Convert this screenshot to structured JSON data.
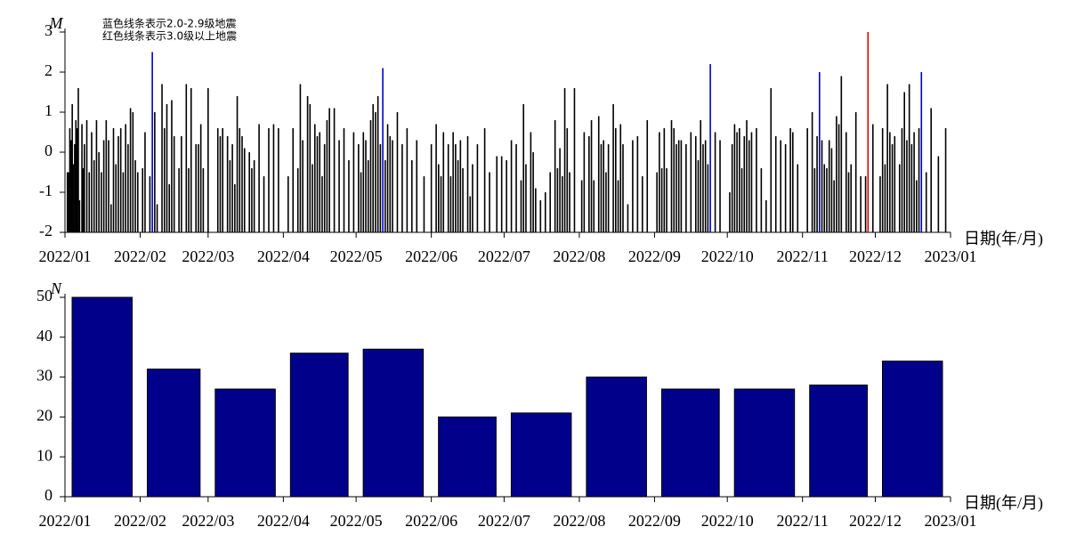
{
  "chart_data": [
    {
      "type": "stem",
      "y_label": "M",
      "x_label": "日期(年/月)",
      "xlim": [
        0,
        365
      ],
      "xticks": [
        {
          "value": 0,
          "label": "2022/01"
        },
        {
          "value": 31,
          "label": "2022/02"
        },
        {
          "value": 59,
          "label": "2022/03"
        },
        {
          "value": 90,
          "label": "2022/04"
        },
        {
          "value": 120,
          "label": "2022/05"
        },
        {
          "value": 151,
          "label": "2022/06"
        },
        {
          "value": 181,
          "label": "2022/07"
        },
        {
          "value": 212,
          "label": "2022/08"
        },
        {
          "value": 243,
          "label": "2022/09"
        },
        {
          "value": 273,
          "label": "2022/10"
        },
        {
          "value": 304,
          "label": "2022/11"
        },
        {
          "value": 334,
          "label": "2022/12"
        },
        {
          "value": 365,
          "label": "2023/01"
        }
      ],
      "ylim": [
        -2,
        3
      ],
      "yticks": [
        -2,
        -1,
        0,
        1,
        2,
        3
      ],
      "series": [
        {
          "color": "#000000",
          "x": [
            1,
            1.5,
            2,
            2.5,
            3,
            3.5,
            4,
            4.5,
            5,
            5.5,
            6,
            7,
            7.5,
            8,
            9,
            10,
            11,
            12,
            13,
            14,
            15,
            16,
            17,
            18,
            19,
            20,
            21,
            22,
            23,
            24,
            25,
            26,
            27,
            28,
            29,
            30,
            32,
            33,
            35,
            37,
            38,
            40,
            41,
            42,
            43,
            44,
            45,
            47,
            48,
            50,
            51,
            52,
            54,
            55,
            56,
            57,
            59,
            63,
            64,
            65,
            67,
            68,
            69,
            70,
            71,
            72,
            73,
            74,
            76,
            77,
            78,
            80,
            82,
            84,
            86,
            88,
            92,
            94,
            96,
            97,
            98,
            100,
            101,
            102,
            103,
            104,
            105,
            106,
            107,
            108,
            109,
            111,
            113,
            115,
            117,
            119,
            121,
            122,
            123,
            124,
            125,
            126,
            127,
            128,
            129,
            130,
            132,
            133,
            134,
            135,
            137,
            139,
            141,
            143,
            145,
            148,
            151,
            153,
            154,
            155,
            156,
            158,
            159,
            160,
            161,
            162,
            163,
            164,
            166,
            167,
            168,
            170,
            173,
            175,
            178,
            180,
            182,
            184,
            186,
            188,
            189,
            190,
            192,
            193,
            194,
            196,
            198,
            200,
            202,
            203,
            204,
            205,
            206,
            207,
            208,
            210,
            213,
            214,
            216,
            217,
            218,
            220,
            221,
            222,
            223,
            224,
            226,
            227,
            228,
            229,
            230,
            232,
            234,
            236,
            238,
            240,
            244,
            245,
            246,
            247,
            248,
            250,
            251,
            252,
            253,
            254,
            256,
            258,
            260,
            261,
            262,
            263,
            264,
            265,
            268,
            270,
            274,
            275,
            276,
            277,
            278,
            279,
            280,
            281,
            282,
            283,
            285,
            287,
            289,
            291,
            293,
            295,
            297,
            299,
            300,
            302,
            306,
            308,
            309,
            310,
            312,
            313,
            314,
            315,
            316,
            317,
            318,
            319,
            320,
            322,
            323,
            324,
            326,
            328,
            330,
            333,
            336,
            337,
            338,
            339,
            340,
            341,
            342,
            344,
            345,
            346,
            347,
            348,
            349,
            350,
            351,
            352,
            355,
            357,
            360,
            363
          ],
          "values": [
            -0.5,
            -0.5,
            0.6,
            0.3,
            1.2,
            -0.3,
            0.2,
            0.8,
            0.6,
            1.6,
            -1.2,
            0.7,
            -0.4,
            0.2,
            0.8,
            -0.5,
            0.5,
            -0.2,
            0.8,
            0,
            -0.5,
            0.3,
            0.8,
            0.3,
            -1.3,
            0.6,
            -0.3,
            0.4,
            0.6,
            -0.5,
            0.7,
            0.2,
            1.1,
            1,
            -0.2,
            -0.5,
            -0.4,
            0.5,
            -0.6,
            1,
            -1.3,
            1.7,
            0.6,
            1.2,
            -0.8,
            1.3,
            0.4,
            -0.4,
            0.4,
            1.7,
            -0.4,
            1.6,
            0.2,
            0.2,
            0.7,
            -0.4,
            1.6,
            0.6,
            0.4,
            0.6,
            0.4,
            -0.2,
            0.2,
            -0.8,
            1.4,
            0.6,
            0.4,
            0.1,
            0,
            -0.4,
            -0.2,
            0.7,
            -0.6,
            0.6,
            0.7,
            0.6,
            -0.6,
            0.6,
            -0.4,
            1.7,
            0.3,
            1.4,
            1.2,
            -0.3,
            0.7,
            0.4,
            0.5,
            -0.6,
            0.2,
            0.8,
            1.1,
            1.1,
            0.3,
            0.6,
            -0.2,
            0.5,
            0.2,
            -0.5,
            0.5,
            0.3,
            -0.2,
            0.8,
            1.2,
            1,
            1.4,
            0.2,
            -0.2,
            0.7,
            0.4,
            0.3,
            1,
            0.2,
            0.6,
            -0.2,
            0.3,
            -0.6,
            0.2,
            0.7,
            -0.3,
            -0.6,
            0.5,
            0.2,
            -0.6,
            0.5,
            0.2,
            -0.2,
            0.3,
            -0.4,
            0.4,
            -1.1,
            -0.3,
            0.2,
            0.6,
            -0.5,
            -0.1,
            -0.1,
            -0.2,
            0.3,
            0.2,
            -0.7,
            1.2,
            -0.3,
            0.5,
            0,
            -0.9,
            -1.2,
            -1,
            -0.5,
            0.8,
            -0.4,
            0.1,
            -0.6,
            1.6,
            0.6,
            -0.5,
            1.6,
            -0.7,
            0.5,
            0.4,
            0.8,
            -0.7,
            0.9,
            0.2,
            0.3,
            -0.5,
            0.2,
            1.2,
            0.6,
            -0.7,
            0.7,
            0.2,
            -1.3,
            0.3,
            0.4,
            -0.6,
            0.8,
            -0.5,
            0.5,
            -0.4,
            0.6,
            -0.4,
            0.8,
            0.6,
            0.2,
            0.3,
            0.3,
            0.2,
            0.5,
            0.4,
            -0.2,
            0.8,
            0.2,
            0.3,
            -0.3,
            0.5,
            0.3,
            -1,
            0.2,
            0.7,
            0.5,
            0.6,
            -0.4,
            0.4,
            0.8,
            0.3,
            0.5,
            0.6,
            -0.4,
            -1.2,
            1.6,
            0.4,
            0.3,
            0.2,
            0.6,
            0.5,
            -0.3,
            0.6,
            1,
            -0.4,
            0.4,
            0.3,
            -0.3,
            -0.4,
            0.3,
            0.1,
            -0.7,
            0.9,
            0.7,
            1.9,
            0.5,
            -0.5,
            -0.3,
            1,
            -0.6,
            -0.6,
            0.7,
            -0.6,
            0.6,
            -0.3,
            1.7,
            0.5,
            0.2,
            0.4,
            -0.3,
            0.6,
            1.5,
            0.3,
            1.7,
            0.2,
            0.5,
            -0.7,
            0.6,
            -0.5,
            1.1,
            -0.1,
            0.6
          ]
        },
        {
          "name": "蓝色线条表示2.0-2.9级地震",
          "color": "#0000cc",
          "x": [
            36,
            131,
            266,
            311,
            353
          ],
          "values": [
            2.5,
            2.1,
            2.2,
            2.0,
            2.0
          ]
        },
        {
          "name": "红色线条表示3.0级以上地震",
          "color": "#dd0000",
          "x": [
            331
          ],
          "values": [
            3.0
          ]
        }
      ]
    },
    {
      "type": "histogram",
      "y_label": "N",
      "x_label": "日期(年/月)",
      "xlim": [
        0,
        365
      ],
      "xticks": [
        {
          "value": 0,
          "label": "2022/01"
        },
        {
          "value": 31,
          "label": "2022/02"
        },
        {
          "value": 59,
          "label": "2022/03"
        },
        {
          "value": 90,
          "label": "2022/04"
        },
        {
          "value": 120,
          "label": "2022/05"
        },
        {
          "value": 151,
          "label": "2022/06"
        },
        {
          "value": 181,
          "label": "2022/07"
        },
        {
          "value": 212,
          "label": "2022/08"
        },
        {
          "value": 243,
          "label": "2022/09"
        },
        {
          "value": 273,
          "label": "2022/10"
        },
        {
          "value": 304,
          "label": "2022/11"
        },
        {
          "value": 334,
          "label": "2022/12"
        },
        {
          "value": 365,
          "label": "2023/01"
        }
      ],
      "ylim": [
        0,
        50
      ],
      "yticks": [
        0,
        10,
        20,
        30,
        40,
        50
      ],
      "bins": [
        0,
        31,
        59,
        90,
        120,
        151,
        181,
        212,
        243,
        273,
        304,
        334,
        365
      ],
      "values": [
        50,
        32,
        27,
        36,
        37,
        20,
        21,
        30,
        27,
        27,
        28,
        34
      ],
      "color": "#00008b"
    }
  ]
}
